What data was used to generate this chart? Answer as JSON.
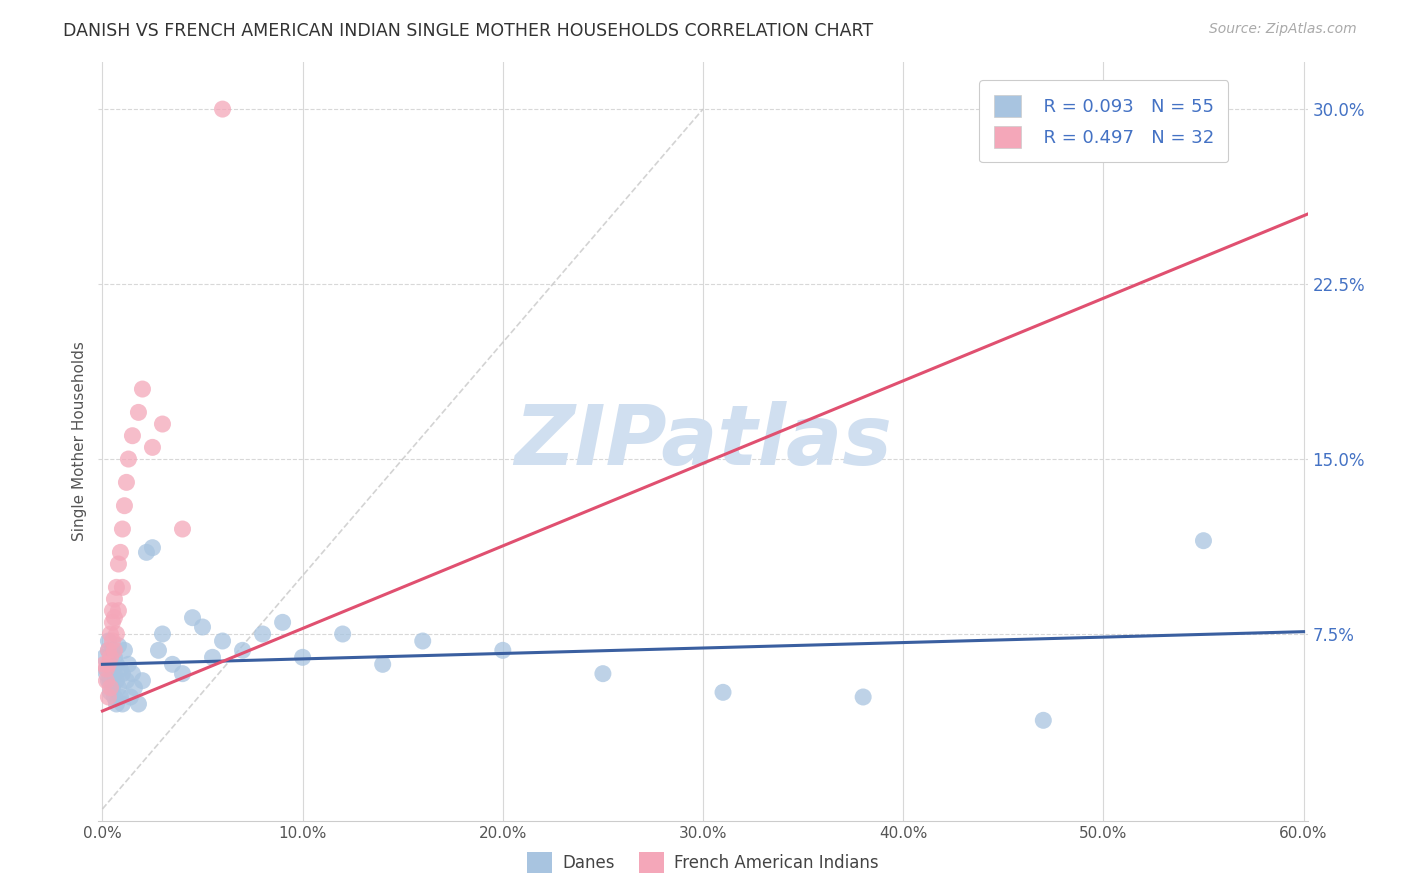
{
  "title": "DANISH VS FRENCH AMERICAN INDIAN SINGLE MOTHER HOUSEHOLDS CORRELATION CHART",
  "source": "Source: ZipAtlas.com",
  "ylabel": "Single Mother Households",
  "xlabel_ticks": [
    "0.0%",
    "10.0%",
    "20.0%",
    "30.0%",
    "40.0%",
    "50.0%",
    "60.0%"
  ],
  "xlabel_vals": [
    0.0,
    0.1,
    0.2,
    0.3,
    0.4,
    0.5,
    0.6
  ],
  "ylabel_ticks": [
    "7.5%",
    "15.0%",
    "22.5%",
    "30.0%"
  ],
  "ylabel_vals": [
    0.075,
    0.15,
    0.225,
    0.3
  ],
  "xlim": [
    -0.002,
    0.602
  ],
  "ylim": [
    -0.005,
    0.32
  ],
  "danes_R": 0.093,
  "danes_N": 55,
  "french_R": 0.497,
  "french_N": 32,
  "danes_color": "#a8c4e0",
  "french_color": "#f4a7b9",
  "danes_line_color": "#3a5fa0",
  "french_line_color": "#e05070",
  "trendline_dashed_color": "#c8c8c8",
  "legend_text_color": "#4472c4",
  "background_color": "#ffffff",
  "grid_color": "#d8d8d8",
  "watermark_color": "#d0dff0",
  "danes_x": [
    0.001,
    0.002,
    0.002,
    0.003,
    0.003,
    0.003,
    0.004,
    0.004,
    0.004,
    0.005,
    0.005,
    0.005,
    0.006,
    0.006,
    0.006,
    0.007,
    0.007,
    0.007,
    0.008,
    0.008,
    0.009,
    0.009,
    0.01,
    0.01,
    0.011,
    0.012,
    0.013,
    0.014,
    0.015,
    0.016,
    0.018,
    0.02,
    0.022,
    0.025,
    0.028,
    0.03,
    0.035,
    0.04,
    0.045,
    0.05,
    0.055,
    0.06,
    0.07,
    0.08,
    0.09,
    0.1,
    0.12,
    0.14,
    0.16,
    0.2,
    0.25,
    0.31,
    0.38,
    0.47,
    0.55
  ],
  "danes_y": [
    0.065,
    0.06,
    0.058,
    0.072,
    0.068,
    0.055,
    0.062,
    0.055,
    0.05,
    0.068,
    0.06,
    0.052,
    0.058,
    0.065,
    0.048,
    0.062,
    0.055,
    0.045,
    0.07,
    0.052,
    0.06,
    0.048,
    0.058,
    0.045,
    0.068,
    0.055,
    0.062,
    0.048,
    0.058,
    0.052,
    0.045,
    0.055,
    0.11,
    0.112,
    0.068,
    0.075,
    0.062,
    0.058,
    0.082,
    0.078,
    0.065,
    0.072,
    0.068,
    0.075,
    0.08,
    0.065,
    0.075,
    0.062,
    0.072,
    0.068,
    0.058,
    0.05,
    0.048,
    0.038,
    0.115
  ],
  "french_x": [
    0.001,
    0.002,
    0.002,
    0.003,
    0.003,
    0.003,
    0.004,
    0.004,
    0.004,
    0.005,
    0.005,
    0.005,
    0.006,
    0.006,
    0.006,
    0.007,
    0.007,
    0.008,
    0.008,
    0.009,
    0.01,
    0.01,
    0.011,
    0.012,
    0.013,
    0.015,
    0.018,
    0.02,
    0.025,
    0.03,
    0.04,
    0.06
  ],
  "french_y": [
    0.062,
    0.06,
    0.055,
    0.068,
    0.062,
    0.048,
    0.075,
    0.065,
    0.052,
    0.08,
    0.085,
    0.072,
    0.09,
    0.082,
    0.068,
    0.095,
    0.075,
    0.105,
    0.085,
    0.11,
    0.12,
    0.095,
    0.13,
    0.14,
    0.15,
    0.16,
    0.17,
    0.18,
    0.155,
    0.165,
    0.12,
    0.3
  ],
  "watermark": "ZIPatlas"
}
